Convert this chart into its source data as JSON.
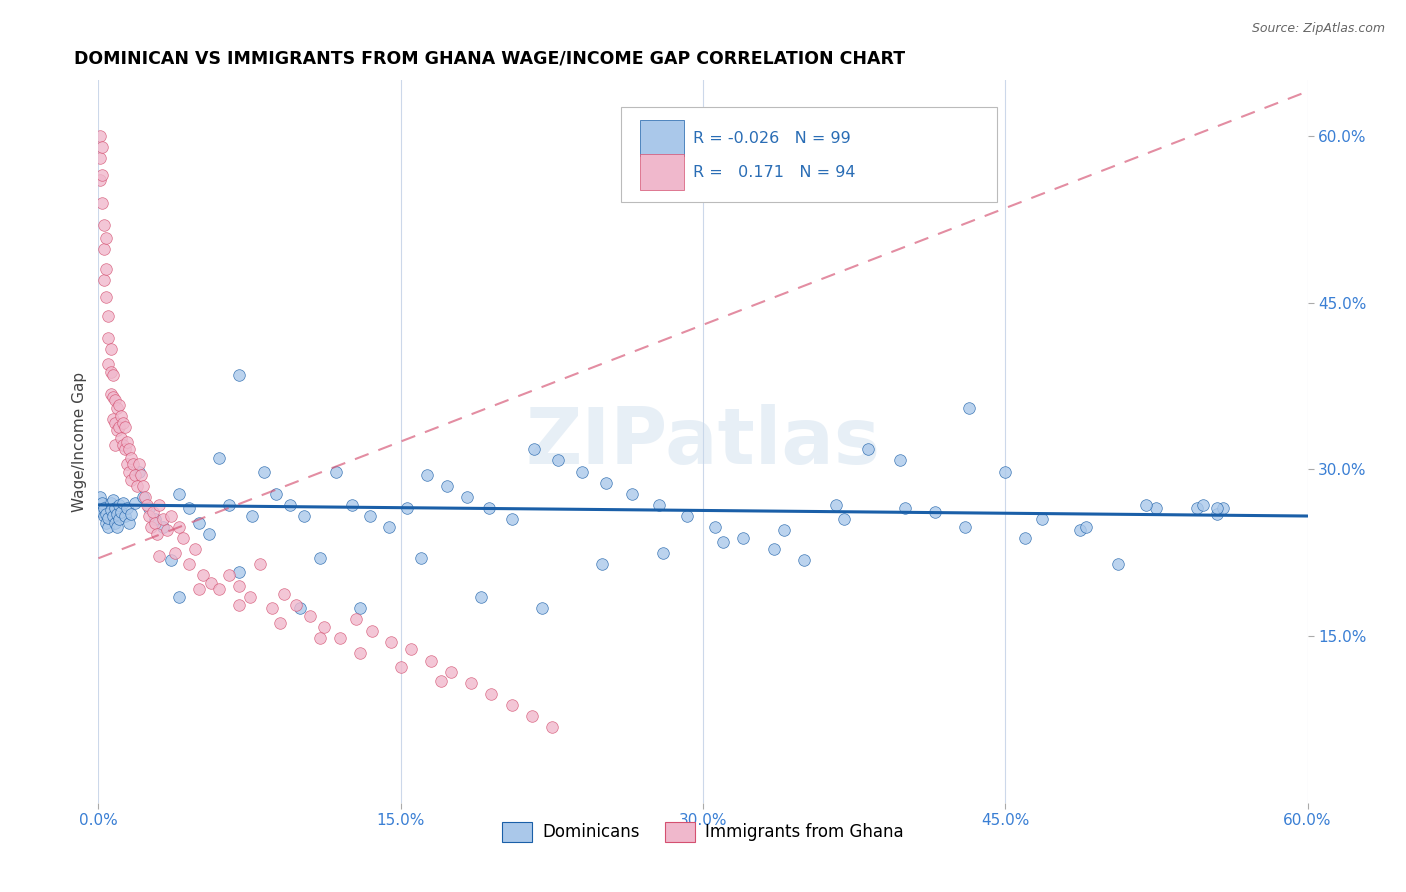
{
  "title": "DOMINICAN VS IMMIGRANTS FROM GHANA WAGE/INCOME GAP CORRELATION CHART",
  "source": "Source: ZipAtlas.com",
  "ylabel": "Wage/Income Gap",
  "xlim": [
    0.0,
    0.6
  ],
  "ylim": [
    0.0,
    0.65
  ],
  "xticks": [
    0.0,
    0.15,
    0.3,
    0.45,
    0.6
  ],
  "xticklabels": [
    "0.0%",
    "15.0%",
    "30.0%",
    "45.0%",
    "60.0%"
  ],
  "yticks_right": [
    0.15,
    0.3,
    0.45,
    0.6
  ],
  "yticklabels_right": [
    "15.0%",
    "30.0%",
    "45.0%",
    "60.0%"
  ],
  "dominicans_color": "#aac8ea",
  "ghana_color": "#f0b8cc",
  "trendline_dominicans_color": "#1a5fa8",
  "trendline_ghana_color": "#d45070",
  "legend_label_1": "Dominicans",
  "legend_label_2": "Immigrants from Ghana",
  "watermark": "ZIPatlas",
  "dominicans_x": [
    0.001,
    0.001,
    0.002,
    0.002,
    0.003,
    0.003,
    0.004,
    0.004,
    0.005,
    0.005,
    0.006,
    0.006,
    0.007,
    0.007,
    0.008,
    0.008,
    0.009,
    0.009,
    0.01,
    0.01,
    0.011,
    0.012,
    0.013,
    0.014,
    0.015,
    0.016,
    0.018,
    0.02,
    0.022,
    0.025,
    0.028,
    0.032,
    0.036,
    0.04,
    0.045,
    0.05,
    0.055,
    0.06,
    0.065,
    0.07,
    0.076,
    0.082,
    0.088,
    0.095,
    0.102,
    0.11,
    0.118,
    0.126,
    0.135,
    0.144,
    0.153,
    0.163,
    0.173,
    0.183,
    0.194,
    0.205,
    0.216,
    0.228,
    0.24,
    0.252,
    0.265,
    0.278,
    0.292,
    0.306,
    0.32,
    0.335,
    0.35,
    0.366,
    0.382,
    0.398,
    0.415,
    0.432,
    0.45,
    0.468,
    0.487,
    0.506,
    0.525,
    0.545,
    0.555,
    0.558,
    0.04,
    0.07,
    0.1,
    0.13,
    0.16,
    0.19,
    0.22,
    0.25,
    0.28,
    0.31,
    0.34,
    0.37,
    0.4,
    0.43,
    0.46,
    0.49,
    0.52,
    0.548,
    0.555
  ],
  "dominicans_y": [
    0.268,
    0.275,
    0.262,
    0.27,
    0.258,
    0.265,
    0.252,
    0.26,
    0.248,
    0.256,
    0.27,
    0.263,
    0.272,
    0.258,
    0.265,
    0.252,
    0.26,
    0.248,
    0.268,
    0.255,
    0.262,
    0.27,
    0.258,
    0.265,
    0.252,
    0.26,
    0.27,
    0.298,
    0.275,
    0.265,
    0.255,
    0.248,
    0.218,
    0.278,
    0.265,
    0.252,
    0.242,
    0.31,
    0.268,
    0.385,
    0.258,
    0.298,
    0.278,
    0.268,
    0.258,
    0.22,
    0.298,
    0.268,
    0.258,
    0.248,
    0.265,
    0.295,
    0.285,
    0.275,
    0.265,
    0.255,
    0.318,
    0.308,
    0.298,
    0.288,
    0.278,
    0.268,
    0.258,
    0.248,
    0.238,
    0.228,
    0.218,
    0.268,
    0.318,
    0.308,
    0.262,
    0.355,
    0.298,
    0.255,
    0.245,
    0.215,
    0.265,
    0.265,
    0.26,
    0.265,
    0.185,
    0.208,
    0.175,
    0.175,
    0.22,
    0.185,
    0.175,
    0.215,
    0.225,
    0.235,
    0.245,
    0.255,
    0.265,
    0.248,
    0.238,
    0.248,
    0.268,
    0.268,
    0.265
  ],
  "ghana_x": [
    0.001,
    0.001,
    0.001,
    0.002,
    0.002,
    0.002,
    0.003,
    0.003,
    0.003,
    0.004,
    0.004,
    0.004,
    0.005,
    0.005,
    0.005,
    0.006,
    0.006,
    0.006,
    0.007,
    0.007,
    0.007,
    0.008,
    0.008,
    0.008,
    0.009,
    0.009,
    0.01,
    0.01,
    0.011,
    0.011,
    0.012,
    0.012,
    0.013,
    0.013,
    0.014,
    0.014,
    0.015,
    0.015,
    0.016,
    0.016,
    0.017,
    0.018,
    0.019,
    0.02,
    0.021,
    0.022,
    0.023,
    0.024,
    0.025,
    0.026,
    0.027,
    0.028,
    0.029,
    0.03,
    0.032,
    0.034,
    0.036,
    0.038,
    0.04,
    0.042,
    0.045,
    0.048,
    0.052,
    0.056,
    0.06,
    0.065,
    0.07,
    0.075,
    0.08,
    0.086,
    0.092,
    0.098,
    0.105,
    0.112,
    0.12,
    0.128,
    0.136,
    0.145,
    0.155,
    0.165,
    0.175,
    0.185,
    0.195,
    0.205,
    0.215,
    0.225,
    0.03,
    0.05,
    0.07,
    0.09,
    0.11,
    0.13,
    0.15,
    0.17
  ],
  "ghana_y": [
    0.6,
    0.58,
    0.56,
    0.59,
    0.565,
    0.54,
    0.52,
    0.498,
    0.47,
    0.508,
    0.48,
    0.455,
    0.438,
    0.418,
    0.395,
    0.408,
    0.388,
    0.368,
    0.385,
    0.365,
    0.345,
    0.362,
    0.342,
    0.322,
    0.355,
    0.335,
    0.358,
    0.338,
    0.348,
    0.328,
    0.342,
    0.322,
    0.338,
    0.318,
    0.325,
    0.305,
    0.318,
    0.298,
    0.31,
    0.29,
    0.305,
    0.295,
    0.285,
    0.305,
    0.295,
    0.285,
    0.275,
    0.268,
    0.258,
    0.248,
    0.262,
    0.252,
    0.242,
    0.268,
    0.255,
    0.245,
    0.258,
    0.225,
    0.248,
    0.238,
    0.215,
    0.228,
    0.205,
    0.198,
    0.192,
    0.205,
    0.195,
    0.185,
    0.215,
    0.175,
    0.188,
    0.178,
    0.168,
    0.158,
    0.148,
    0.165,
    0.155,
    0.145,
    0.138,
    0.128,
    0.118,
    0.108,
    0.098,
    0.088,
    0.078,
    0.068,
    0.222,
    0.192,
    0.178,
    0.162,
    0.148,
    0.135,
    0.122,
    0.11
  ],
  "trendline_dom_x0": 0.0,
  "trendline_dom_x1": 0.6,
  "trendline_dom_y0": 0.268,
  "trendline_dom_y1": 0.258,
  "trendline_gha_x0": 0.0,
  "trendline_gha_x1": 0.6,
  "trendline_gha_y0": 0.22,
  "trendline_gha_y1": 0.64
}
